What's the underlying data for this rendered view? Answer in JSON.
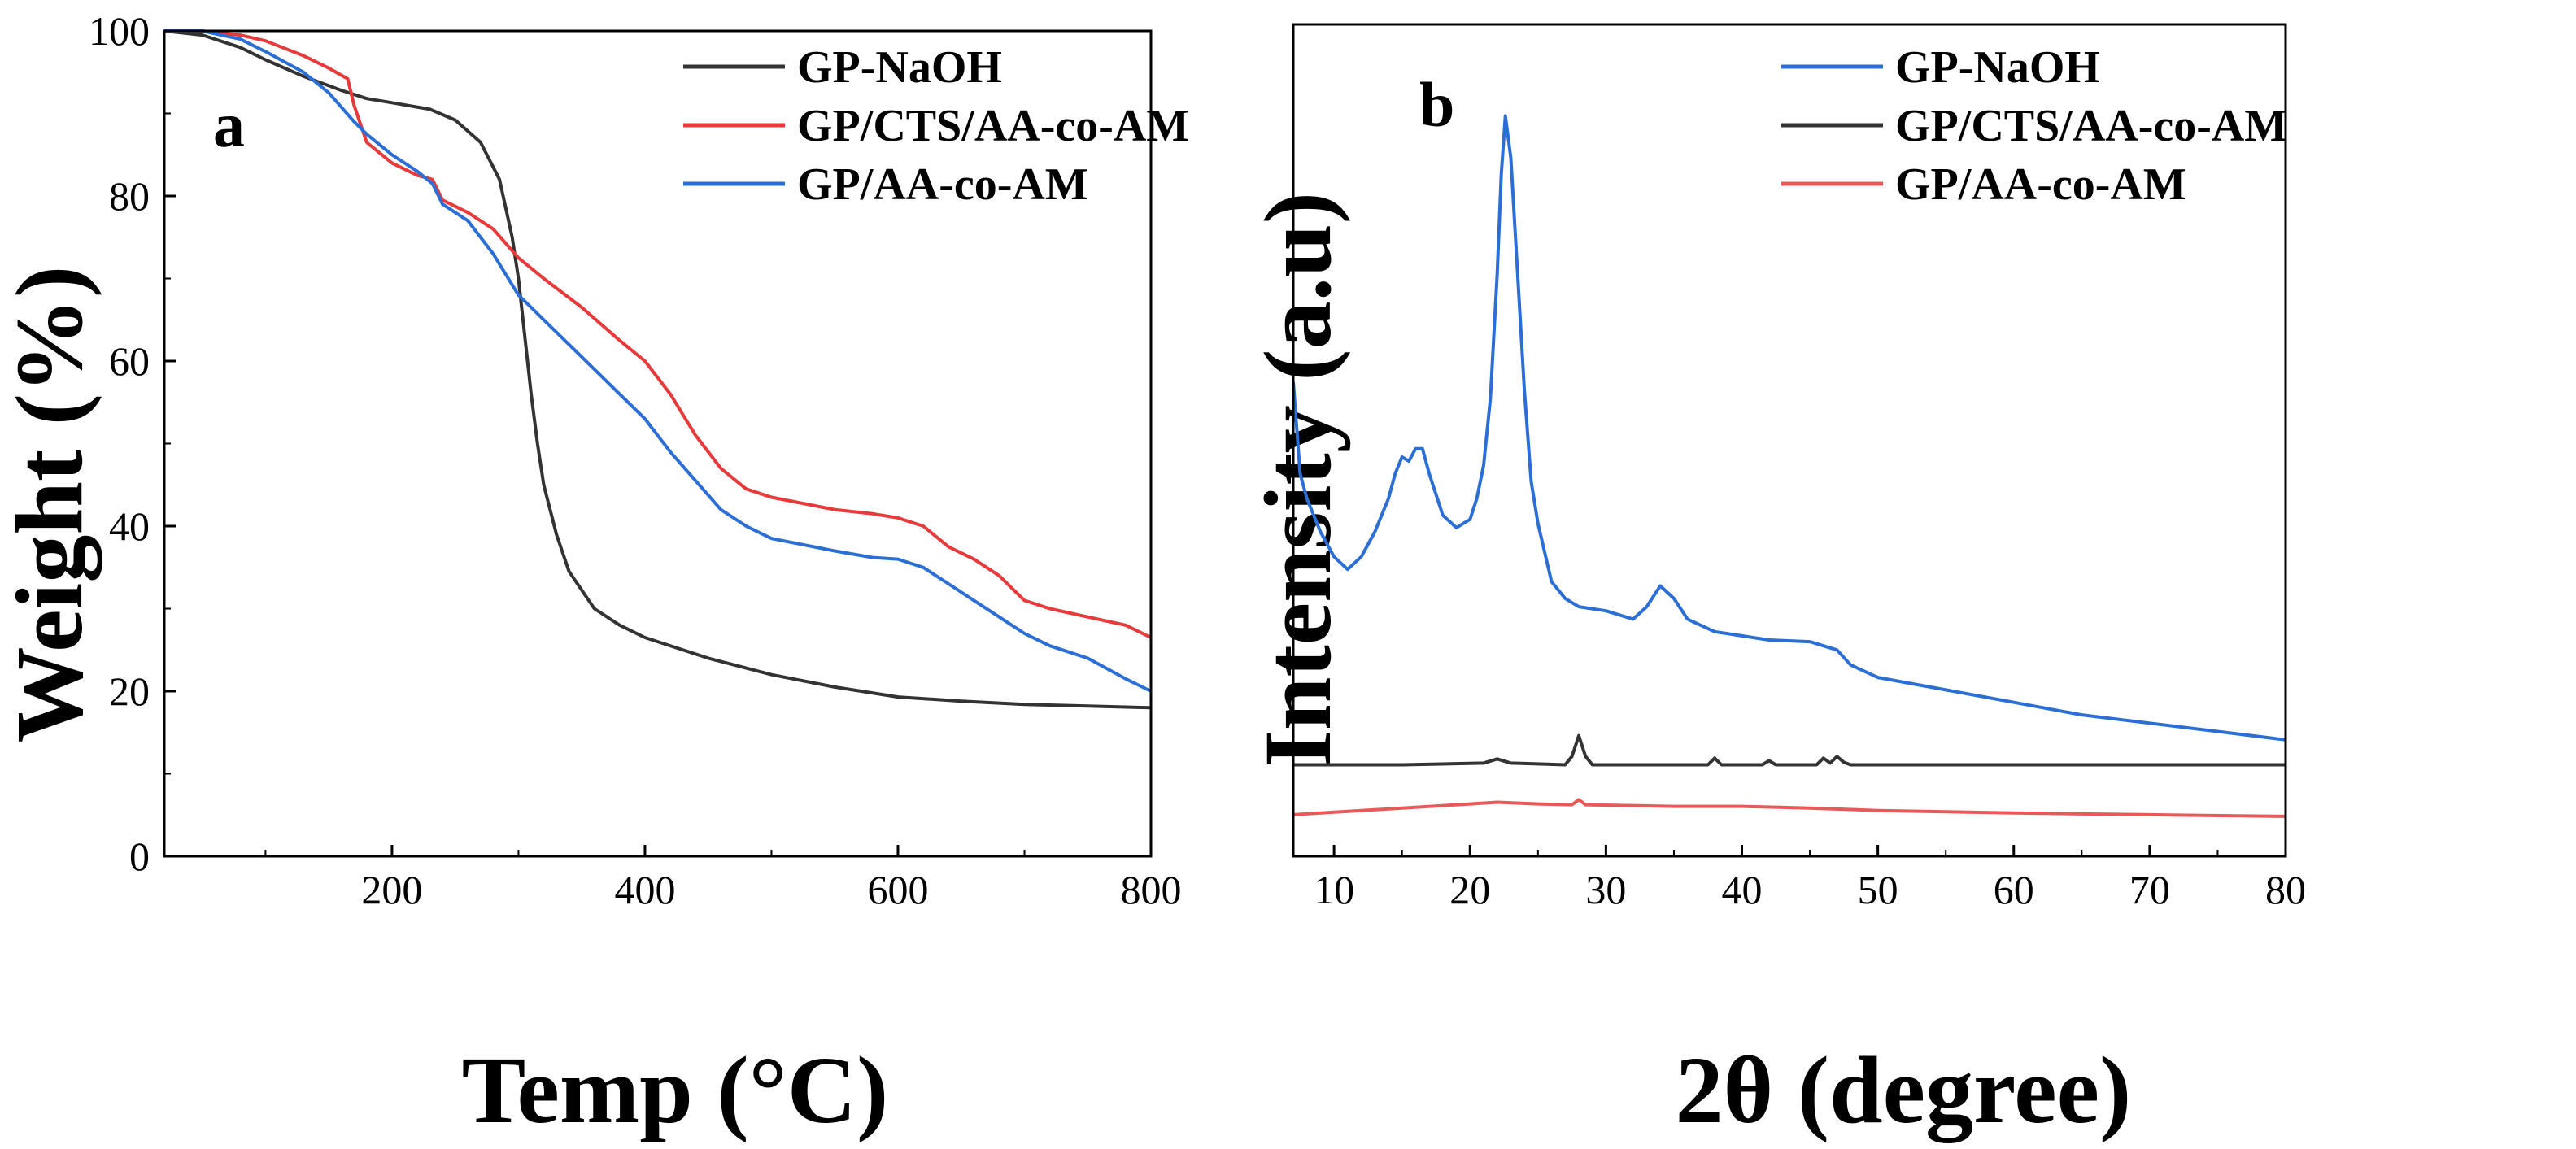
{
  "chart_data": [
    {
      "type": "line",
      "panel_label": "a",
      "xlabel": "Temp (°C)",
      "ylabel": "Weight (%)",
      "xlim": [
        20,
        800
      ],
      "ylim": [
        0,
        100
      ],
      "xticks": [
        200,
        400,
        600,
        800
      ],
      "yticks": [
        0,
        20,
        40,
        60,
        80,
        100
      ],
      "legend_position": "top-right",
      "series": [
        {
          "name": "GP-NaOH",
          "color": "#333333",
          "x": [
            20,
            50,
            80,
            100,
            130,
            160,
            180,
            200,
            230,
            250,
            270,
            285,
            295,
            300,
            305,
            310,
            315,
            320,
            330,
            340,
            360,
            380,
            400,
            450,
            500,
            550,
            600,
            650,
            700,
            750,
            800
          ],
          "y": [
            100,
            99.5,
            98,
            96.5,
            94.5,
            92.8,
            91.8,
            91.3,
            90.5,
            89.2,
            86.5,
            82,
            75,
            70,
            63,
            56,
            50,
            45,
            39,
            34.5,
            30,
            28,
            26.5,
            24,
            22,
            20.5,
            19.3,
            18.8,
            18.4,
            18.2,
            18
          ]
        },
        {
          "name": "GP/CTS/AA-co-AM",
          "color": "#e8393b",
          "x": [
            20,
            50,
            80,
            100,
            130,
            150,
            165,
            170,
            180,
            200,
            220,
            232,
            240,
            260,
            280,
            300,
            320,
            350,
            380,
            400,
            420,
            440,
            460,
            480,
            500,
            550,
            580,
            600,
            620,
            640,
            660,
            680,
            700,
            720,
            750,
            780,
            800
          ],
          "y": [
            100,
            100,
            99.5,
            98.8,
            97,
            95.5,
            94.2,
            91,
            86.5,
            84,
            82.5,
            82,
            79.5,
            78,
            76,
            72.5,
            70,
            66.5,
            62.5,
            60,
            56,
            51,
            47,
            44.5,
            43.5,
            42,
            41.5,
            41,
            40,
            37.5,
            36,
            34,
            31,
            30,
            29,
            28,
            26.5
          ]
        },
        {
          "name": "GP/AA-co-AM",
          "color": "#2b6fd6",
          "x": [
            20,
            50,
            80,
            100,
            130,
            150,
            170,
            180,
            200,
            220,
            232,
            240,
            260,
            280,
            300,
            320,
            350,
            380,
            400,
            420,
            440,
            460,
            480,
            500,
            550,
            580,
            600,
            620,
            640,
            660,
            680,
            700,
            720,
            750,
            780,
            800
          ],
          "y": [
            100,
            100,
            99,
            97.5,
            95,
            92.5,
            89,
            87.5,
            85,
            83,
            81.5,
            79,
            77,
            73,
            68,
            65,
            60.5,
            56,
            53,
            49,
            45.5,
            42,
            40,
            38.5,
            37,
            36.2,
            36,
            35,
            33,
            31,
            29,
            27,
            25.5,
            24,
            21.5,
            20
          ]
        }
      ]
    },
    {
      "type": "line",
      "panel_label": "b",
      "xlabel": "2θ (degree)",
      "ylabel": "Intensity (a.u)",
      "xlim": [
        7,
        80
      ],
      "ylim": [
        0,
        100
      ],
      "xticks": [
        10,
        20,
        30,
        40,
        50,
        60,
        70,
        80
      ],
      "yticks": [],
      "legend_position": "top-right",
      "series": [
        {
          "name": "GP-NaOH",
          "color": "#2b6fd6",
          "x": [
            7,
            7.5,
            8,
            9,
            10,
            11,
            12,
            13,
            14,
            14.5,
            15,
            15.5,
            16,
            16.5,
            17,
            18,
            19,
            20,
            20.5,
            21,
            21.5,
            22,
            22.3,
            22.6,
            23,
            23.5,
            24,
            24.5,
            25,
            26,
            27,
            28,
            30,
            32,
            33,
            34,
            35,
            36,
            38,
            40,
            42,
            45,
            47,
            48,
            50,
            55,
            60,
            65,
            70,
            75,
            80
          ],
          "y": [
            57,
            46,
            43,
            39,
            36,
            34.5,
            36,
            39,
            43,
            46,
            48,
            47.5,
            49,
            49,
            46,
            41,
            39.5,
            40.5,
            43,
            47,
            55,
            70,
            82,
            89,
            84,
            70,
            56,
            45,
            40,
            33,
            31,
            30,
            29.5,
            28.5,
            30,
            32.5,
            31,
            28.5,
            27,
            26.5,
            26,
            25.8,
            24.8,
            23,
            21.5,
            20,
            18.5,
            17,
            16,
            15,
            14
          ]
        },
        {
          "name": "GP/CTS/AA-co-AM",
          "color": "#333333",
          "x": [
            7,
            15,
            21,
            22,
            23,
            27,
            27.5,
            28,
            28.5,
            29,
            35,
            37.5,
            38,
            38.5,
            41.5,
            42,
            42.5,
            45.5,
            46,
            46.5,
            47,
            47.5,
            48,
            55,
            60,
            70,
            80
          ],
          "y": [
            11,
            11,
            11.2,
            11.7,
            11.2,
            11,
            12,
            14.5,
            12,
            11,
            11,
            11,
            11.8,
            11,
            11,
            11.5,
            11,
            11,
            11.8,
            11.2,
            12,
            11.3,
            11,
            11,
            11,
            11,
            11
          ]
        },
        {
          "name": "GP/AA-co-AM",
          "color": "#e85a5a",
          "x": [
            7,
            10,
            15,
            20,
            22,
            25,
            27.5,
            28,
            28.5,
            35,
            40,
            45,
            50,
            60,
            70,
            80
          ],
          "y": [
            5,
            5.3,
            5.8,
            6.3,
            6.5,
            6.3,
            6.2,
            6.8,
            6.2,
            6,
            6,
            5.8,
            5.5,
            5.2,
            5,
            4.8
          ]
        }
      ]
    }
  ]
}
